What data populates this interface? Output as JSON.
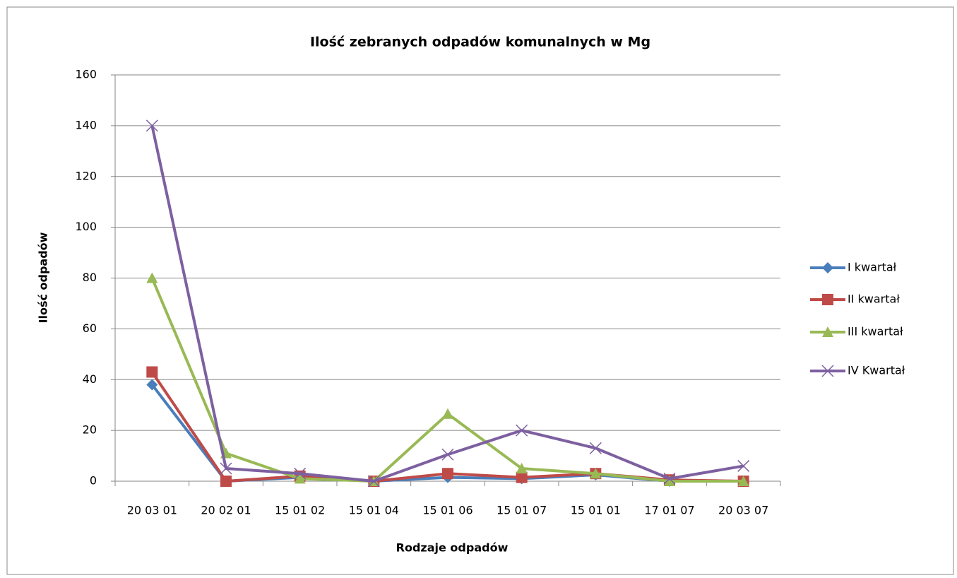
{
  "chart_data": {
    "type": "line",
    "title": "Ilość zebranych odpadów  komunalnych  w Mg",
    "xlabel": "Rodzaje odpadów",
    "ylabel": "Ilość odpadów",
    "categories": [
      "20 03 01",
      "20 02 01",
      "15 01 02",
      "15 01 04",
      "15 01 06",
      "15 01 07",
      "15 01 01",
      "17 01 07",
      "20 03 07"
    ],
    "series": [
      {
        "name": "I kwartał",
        "color": "#4a7ebb",
        "marker": "diamond",
        "values": [
          38,
          0,
          1.5,
          0,
          1.5,
          1,
          2.5,
          0,
          0
        ]
      },
      {
        "name": "II kwartał",
        "color": "#be4b48",
        "marker": "square",
        "values": [
          43,
          0,
          2,
          0,
          3,
          1.5,
          3,
          0.5,
          0
        ]
      },
      {
        "name": "III kwartał",
        "color": "#98b954",
        "marker": "triangle",
        "values": [
          80,
          11,
          1,
          0,
          26.5,
          5,
          3,
          0,
          0
        ]
      },
      {
        "name": "IV Kwartał",
        "color": "#7d60a0",
        "marker": "x",
        "values": [
          140,
          5,
          3,
          0,
          10.5,
          20,
          13,
          1,
          6
        ]
      }
    ],
    "ylim": [
      0,
      160
    ],
    "yticks": [
      0,
      20,
      40,
      60,
      80,
      100,
      120,
      140,
      160
    ],
    "grid": true,
    "legend": "right"
  }
}
